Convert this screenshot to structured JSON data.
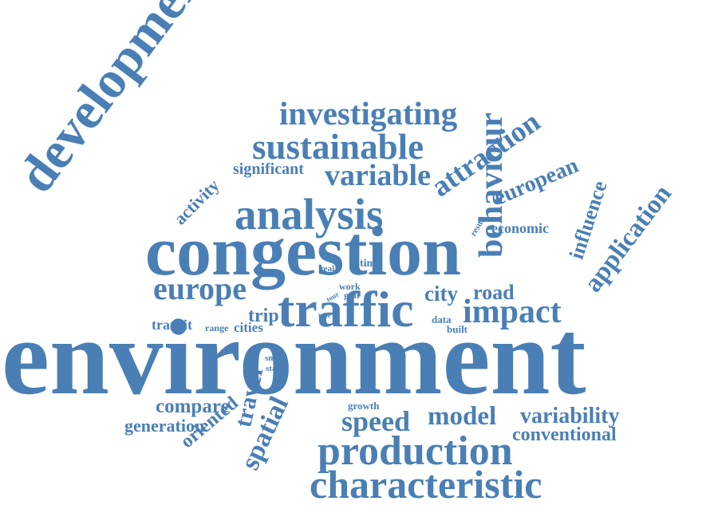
{
  "word_color": "#4a7fb5",
  "words": {
    "environment": "environment",
    "development": "development",
    "congestion": "congestion",
    "characteristic": "characteristic",
    "production": "production",
    "traffic": "traffic",
    "analysis": "analysis",
    "sustainable": "sustainable",
    "investigating": "investigating",
    "variable": "variable",
    "behaviour": "behaviour",
    "application": "application",
    "attraction": "attraction",
    "european": "european",
    "influence": "influence",
    "economic": "economic",
    "result": "result",
    "europe": "europe",
    "impact": "impact",
    "road": "road",
    "city": "city",
    "activity": "activity",
    "significant": "significant",
    "real": "real",
    "time": "time",
    "work": "work",
    "gulf": "gulf",
    "tour": "tour",
    "rate": "rate",
    "data": "data",
    "built": "built",
    "trip": "trip",
    "transit": "transit",
    "range": "range",
    "cities": "cities",
    "smart": "smart",
    "stage": "stage",
    "compare": "compare",
    "generation": "generation",
    "oriented": "oriented",
    "travel": "travel",
    "spatial": "spatial",
    "growth": "growth",
    "speed": "speed",
    "model": "model",
    "variability": "variability",
    "conventional": "conventional"
  }
}
